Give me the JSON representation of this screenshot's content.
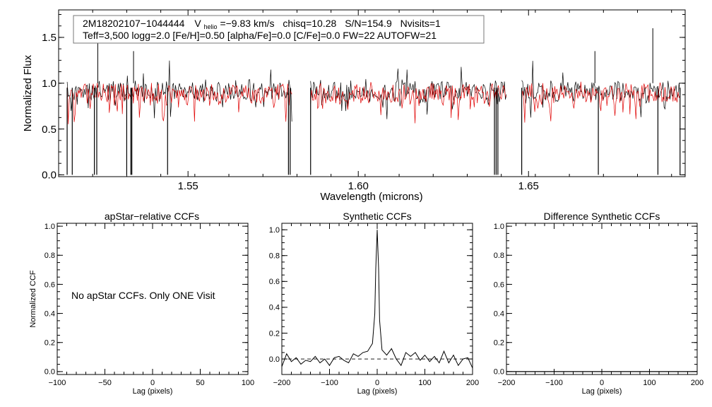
{
  "header": {
    "star_id": "2M18202107−1044444",
    "vhelio_label": "V",
    "vhelio_sub": "helio",
    "vhelio_value": "=−9.83 km/s",
    "chisq": "chisq=10.28",
    "snr": "S/N=154.9",
    "nvisits": "Nvisits=1",
    "params_line": "Teff=3,500 logg=2.0 [Fe/H]=0.50 [alpha/Fe]=0.0 [C/Fe]=0.0 FW=22 AUTOFW=21"
  },
  "colors": {
    "observed": "#000000",
    "model": "#e00000",
    "axes": "#000000"
  },
  "chart_data": [
    {
      "type": "line",
      "title": "",
      "xlabel": "Wavelength (microns)",
      "ylabel": "Normalized Flux",
      "xlim": [
        1.512,
        1.696
      ],
      "ylim": [
        -0.02,
        1.8
      ],
      "xticks": [
        1.55,
        1.6,
        1.65
      ],
      "xtick_labels": [
        "1.55",
        "1.60",
        "1.65"
      ],
      "yticks": [
        0.0,
        0.5,
        1.0,
        1.5
      ],
      "ytick_labels": [
        "0.0",
        "0.5",
        "1.0",
        "1.5"
      ],
      "chips": [
        [
          1.5145,
          1.5805
        ],
        [
          1.586,
          1.6435
        ],
        [
          1.648,
          1.6945
        ]
      ],
      "deep_absorption_lines": [
        1.5145,
        1.516,
        1.5225,
        1.5232,
        1.532,
        1.5332,
        1.5335,
        1.544,
        1.5795,
        1.58,
        1.586,
        1.64,
        1.6405,
        1.641,
        1.648,
        1.6705,
        1.688,
        1.6945
      ],
      "emission_spikes": [
        [
          1.5235,
          1.5
        ],
        [
          1.534,
          1.35
        ],
        [
          1.6695,
          1.35
        ],
        [
          1.6865,
          1.6
        ]
      ],
      "series": [
        {
          "name": "",
          "color": "#000000",
          "continuum": 1.0
        },
        {
          "name": "",
          "color": "#e00000",
          "continuum": 0.97
        }
      ]
    },
    {
      "type": "line",
      "title": "apStar−relative CCFs",
      "xlabel": "Lag (pixels)",
      "ylabel": "Normalized CCF",
      "xlim": [
        -100,
        100
      ],
      "ylim": [
        -0.02,
        1.02
      ],
      "xticks": [
        -100,
        -50,
        0,
        50,
        100
      ],
      "xtick_labels": [
        "−100",
        "−50",
        "0",
        "50",
        "100"
      ],
      "yticks": [
        0.0,
        0.2,
        0.4,
        0.6,
        0.8,
        1.0
      ],
      "ytick_labels": [
        "0.0",
        "0.2",
        "0.4",
        "0.6",
        "0.8",
        "1.0"
      ],
      "annotation": "No apStar CCFs.  Only ONE Visit",
      "series": []
    },
    {
      "type": "line",
      "title": "Synthetic CCFs",
      "xlabel": "Lag (pixels)",
      "ylabel": "",
      "xlim": [
        -200,
        200
      ],
      "ylim": [
        -0.12,
        1.05
      ],
      "xticks": [
        -200,
        -100,
        0,
        100,
        200
      ],
      "xtick_labels": [
        "−200",
        "−100",
        "0",
        "100",
        "200"
      ],
      "yticks": [
        0.0,
        0.2,
        0.4,
        0.6,
        0.8,
        1.0
      ],
      "ytick_labels": [
        "0.0",
        "0.2",
        "0.4",
        "0.6",
        "0.8",
        "1.0"
      ],
      "baseline": 0.0,
      "series": [
        {
          "name": "",
          "x": [
            -200,
            -190,
            -180,
            -170,
            -160,
            -150,
            -140,
            -130,
            -120,
            -110,
            -100,
            -90,
            -80,
            -70,
            -60,
            -50,
            -40,
            -30,
            -20,
            -10,
            -5,
            -3,
            0,
            3,
            5,
            10,
            20,
            30,
            40,
            50,
            60,
            70,
            80,
            90,
            100,
            110,
            120,
            130,
            140,
            150,
            160,
            170,
            180,
            190,
            200
          ],
          "y": [
            -0.06,
            0.04,
            -0.02,
            0.01,
            -0.04,
            -0.01,
            -0.02,
            0.02,
            -0.03,
            0.0,
            -0.05,
            0.01,
            0.02,
            -0.01,
            -0.03,
            0.04,
            0.02,
            0.05,
            0.06,
            0.12,
            0.35,
            0.7,
            1.0,
            0.7,
            0.3,
            0.07,
            0.03,
            0.08,
            0.0,
            -0.05,
            0.05,
            0.02,
            0.05,
            -0.01,
            0.03,
            -0.02,
            0.02,
            -0.03,
            0.06,
            -0.03,
            0.03,
            -0.05,
            0.0,
            0.01,
            -0.07
          ]
        }
      ]
    },
    {
      "type": "line",
      "title": "Difference Synthetic CCFs",
      "xlabel": "Lag (pixels)",
      "ylabel": "",
      "xlim": [
        -200,
        200
      ],
      "ylim": [
        -0.02,
        1.02
      ],
      "xticks": [
        -200,
        -100,
        0,
        100,
        200
      ],
      "xtick_labels": [
        "−200",
        "−100",
        "0",
        "100",
        "200"
      ],
      "yticks": [
        0.0,
        0.2,
        0.4,
        0.6,
        0.8,
        1.0
      ],
      "ytick_labels": [
        "0.0",
        "0.2",
        "0.4",
        "0.6",
        "0.8",
        "1.0"
      ],
      "series": [
        {
          "name": "",
          "x": [
            -200,
            200
          ],
          "y": [
            0.0,
            0.0
          ]
        }
      ]
    }
  ]
}
